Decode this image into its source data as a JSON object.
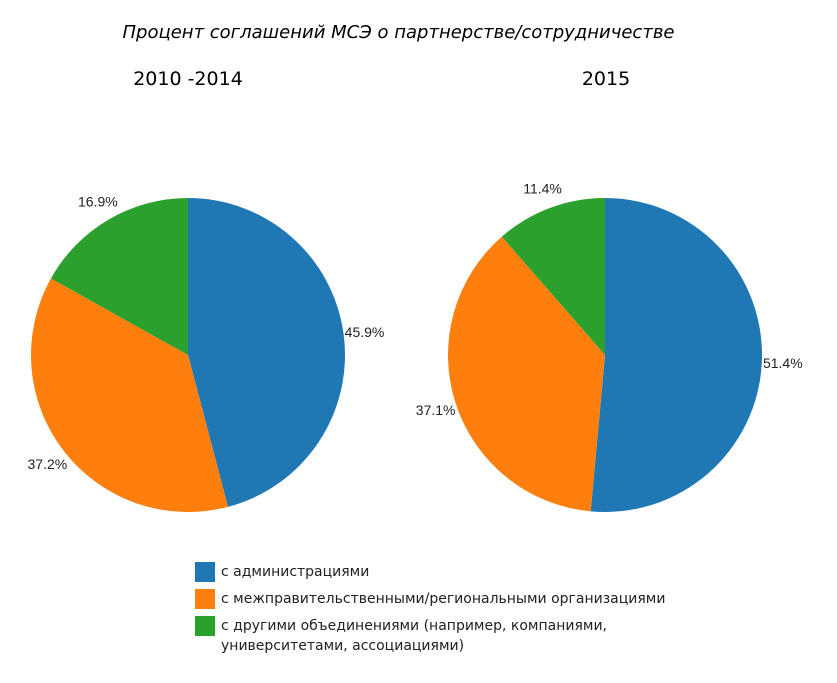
{
  "title": "Процент соглашений МСЭ о партнерстве/сотрудничестве",
  "colors": {
    "blue": "#1f77b4",
    "orange": "#ff7f0e",
    "green": "#2ca02c"
  },
  "legend": [
    {
      "label": "с администрациями",
      "color": "#1f77b4"
    },
    {
      "label": "с межправительственными/региональными организациями",
      "color": "#ff7f0e"
    },
    {
      "label": "с другими объединениями (например, компаниями, университетами, ассоциациями)",
      "color": "#2ca02c"
    }
  ],
  "chart_data": [
    {
      "type": "pie",
      "title": "2010 -2014",
      "labels": [
        "с администрациями",
        "с межправительственными/региональными организациями",
        "с другими объединениями (например, компаниями, университетами, ассоциациями)"
      ],
      "values": [
        45.9,
        37.2,
        16.9
      ],
      "value_labels": [
        "45.9%",
        "37.2%",
        "16.9%"
      ],
      "colors": [
        "#1f77b4",
        "#ff7f0e",
        "#2ca02c"
      ]
    },
    {
      "type": "pie",
      "title": "2015",
      "labels": [
        "с администрациями",
        "с межправительственными/региональными организациями",
        "с другими объединениями (например, компаниями, университетами, ассоциациями)"
      ],
      "values": [
        51.4,
        37.1,
        11.4
      ],
      "value_labels": [
        "51.4%",
        "37.1%",
        "11.4%"
      ],
      "colors": [
        "#1f77b4",
        "#ff7f0e",
        "#2ca02c"
      ]
    }
  ]
}
